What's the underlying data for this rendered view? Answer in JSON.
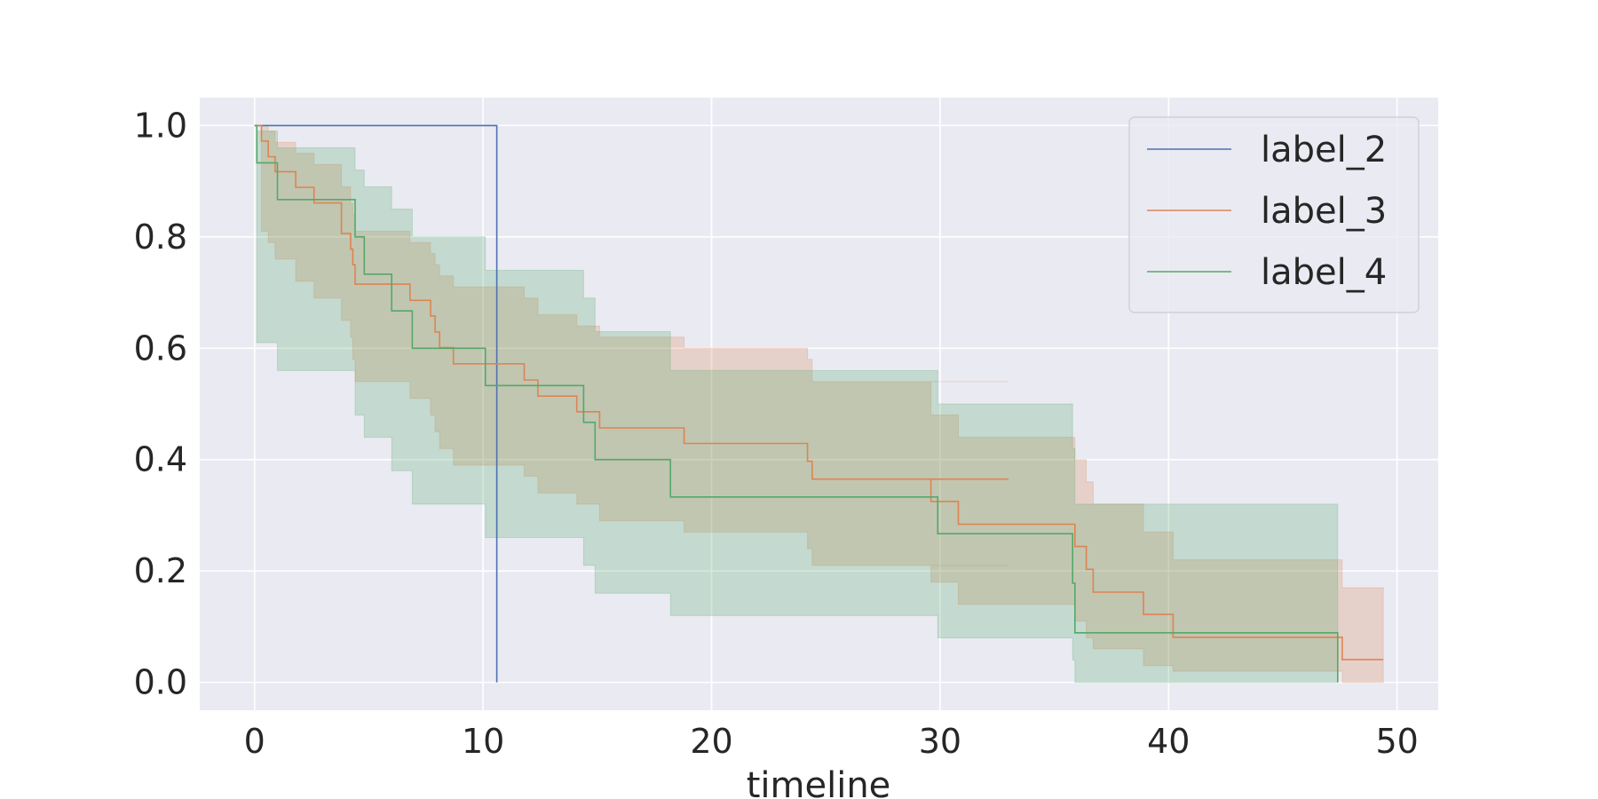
{
  "chart_data": {
    "type": "line",
    "title": "",
    "xlabel": "timeline",
    "ylabel": "",
    "xlim": [
      -2.4,
      51.8
    ],
    "ylim": [
      -0.05,
      1.05
    ],
    "xticks": [
      0,
      10,
      20,
      30,
      40,
      50
    ],
    "yticks": [
      0.0,
      0.2,
      0.4,
      0.6,
      0.8,
      1.0
    ],
    "xtick_labels": [
      "0",
      "10",
      "20",
      "30",
      "40",
      "50"
    ],
    "ytick_labels": [
      "0.0",
      "0.2",
      "0.4",
      "0.6",
      "0.8",
      "1.0"
    ],
    "grid": true,
    "legend_position": "top-right",
    "step": "post",
    "series": [
      {
        "name": "label_2",
        "color": "#4c72b0",
        "x": [
          0,
          10.6,
          10.6
        ],
        "y": [
          1.0,
          1.0,
          0.0
        ],
        "ci_lower": [],
        "ci_upper": []
      },
      {
        "name": "label_3",
        "color": "#dd8452",
        "x": [
          0,
          0.3,
          0.6,
          0.9,
          1.0,
          1.8,
          2.6,
          2.8,
          3.8,
          4.2,
          4.3,
          4.4,
          6.0,
          6.8,
          7.7,
          7.9,
          8.1,
          8.7,
          10.3,
          11.8,
          12.4,
          14.1,
          15.1,
          18.8,
          24.2,
          24.4,
          33.0,
          29.6,
          30.8,
          35.9,
          36.4,
          36.7,
          38.9,
          40.2,
          47.6,
          49.4
        ],
        "y": [
          1.0,
          0.972,
          0.944,
          0.917,
          0.917,
          0.889,
          0.861,
          0.861,
          0.806,
          0.778,
          0.75,
          0.715,
          0.715,
          0.686,
          0.658,
          0.629,
          0.601,
          0.572,
          0.572,
          0.543,
          0.514,
          0.486,
          0.457,
          0.429,
          0.397,
          0.365,
          0.365,
          0.325,
          0.284,
          0.244,
          0.203,
          0.162,
          0.122,
          0.081,
          0.041,
          0.041
        ],
        "ci_lower": [
          1.0,
          0.81,
          0.79,
          0.76,
          0.76,
          0.72,
          0.69,
          0.69,
          0.65,
          0.62,
          0.58,
          0.54,
          0.54,
          0.51,
          0.48,
          0.45,
          0.42,
          0.39,
          0.39,
          0.37,
          0.34,
          0.32,
          0.29,
          0.27,
          0.24,
          0.21,
          0.21,
          0.18,
          0.14,
          0.11,
          0.08,
          0.06,
          0.03,
          0.02,
          0.0,
          0.0
        ],
        "ci_upper": [
          1.0,
          1.0,
          0.99,
          0.97,
          0.97,
          0.95,
          0.93,
          0.93,
          0.89,
          0.86,
          0.84,
          0.81,
          0.81,
          0.79,
          0.77,
          0.75,
          0.73,
          0.71,
          0.71,
          0.69,
          0.66,
          0.64,
          0.62,
          0.6,
          0.58,
          0.54,
          0.54,
          0.48,
          0.44,
          0.4,
          0.36,
          0.32,
          0.27,
          0.22,
          0.17,
          0.17
        ]
      },
      {
        "name": "label_4",
        "color": "#55a868",
        "x": [
          0,
          0.1,
          1.0,
          4.4,
          4.8,
          6.0,
          6.9,
          10.1,
          14.4,
          14.9,
          18.2,
          29.9,
          35.8,
          35.9,
          47.4,
          47.4
        ],
        "y": [
          1.0,
          0.933,
          0.867,
          0.8,
          0.733,
          0.667,
          0.6,
          0.533,
          0.467,
          0.4,
          0.333,
          0.267,
          0.178,
          0.089,
          0.089,
          0.0
        ],
        "ci_lower": [
          1.0,
          0.61,
          0.56,
          0.48,
          0.44,
          0.38,
          0.32,
          0.26,
          0.21,
          0.16,
          0.12,
          0.08,
          0.04,
          0.0,
          0.0,
          0.0
        ],
        "ci_upper": [
          1.0,
          0.99,
          0.96,
          0.92,
          0.89,
          0.85,
          0.8,
          0.74,
          0.69,
          0.63,
          0.56,
          0.5,
          0.42,
          0.32,
          0.32,
          0.32
        ]
      }
    ]
  }
}
